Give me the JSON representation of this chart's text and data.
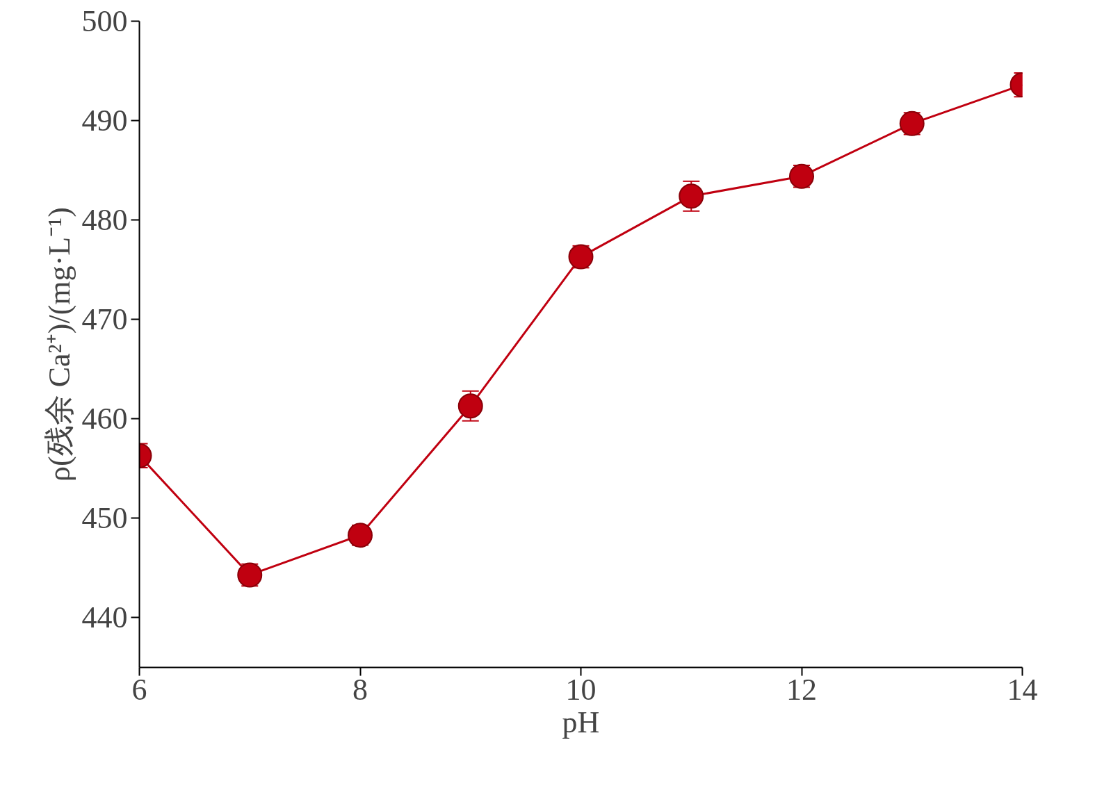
{
  "chart_data": {
    "type": "line",
    "xlabel": "pH",
    "ylabel": "ρ(残余 Ca²⁺)/(mg·L⁻¹)",
    "x": [
      6,
      7,
      8,
      9,
      10,
      11,
      12,
      13,
      14
    ],
    "series": [
      {
        "color": "#c00010",
        "values": [
          456.3,
          444.3,
          448.3,
          461.3,
          476.3,
          482.4,
          484.4,
          489.7,
          493.6
        ],
        "errors": [
          1.2,
          1.1,
          1.0,
          1.5,
          1.1,
          1.5,
          1.1,
          1.1,
          1.2
        ]
      }
    ],
    "xlim": [
      6,
      14
    ],
    "xticks": [
      6,
      8,
      10,
      12,
      14
    ],
    "ylim": [
      435,
      500
    ],
    "yticks": [
      440,
      450,
      460,
      470,
      480,
      490,
      500
    ],
    "grid": false,
    "marker": "circle",
    "line_style": "solid"
  }
}
